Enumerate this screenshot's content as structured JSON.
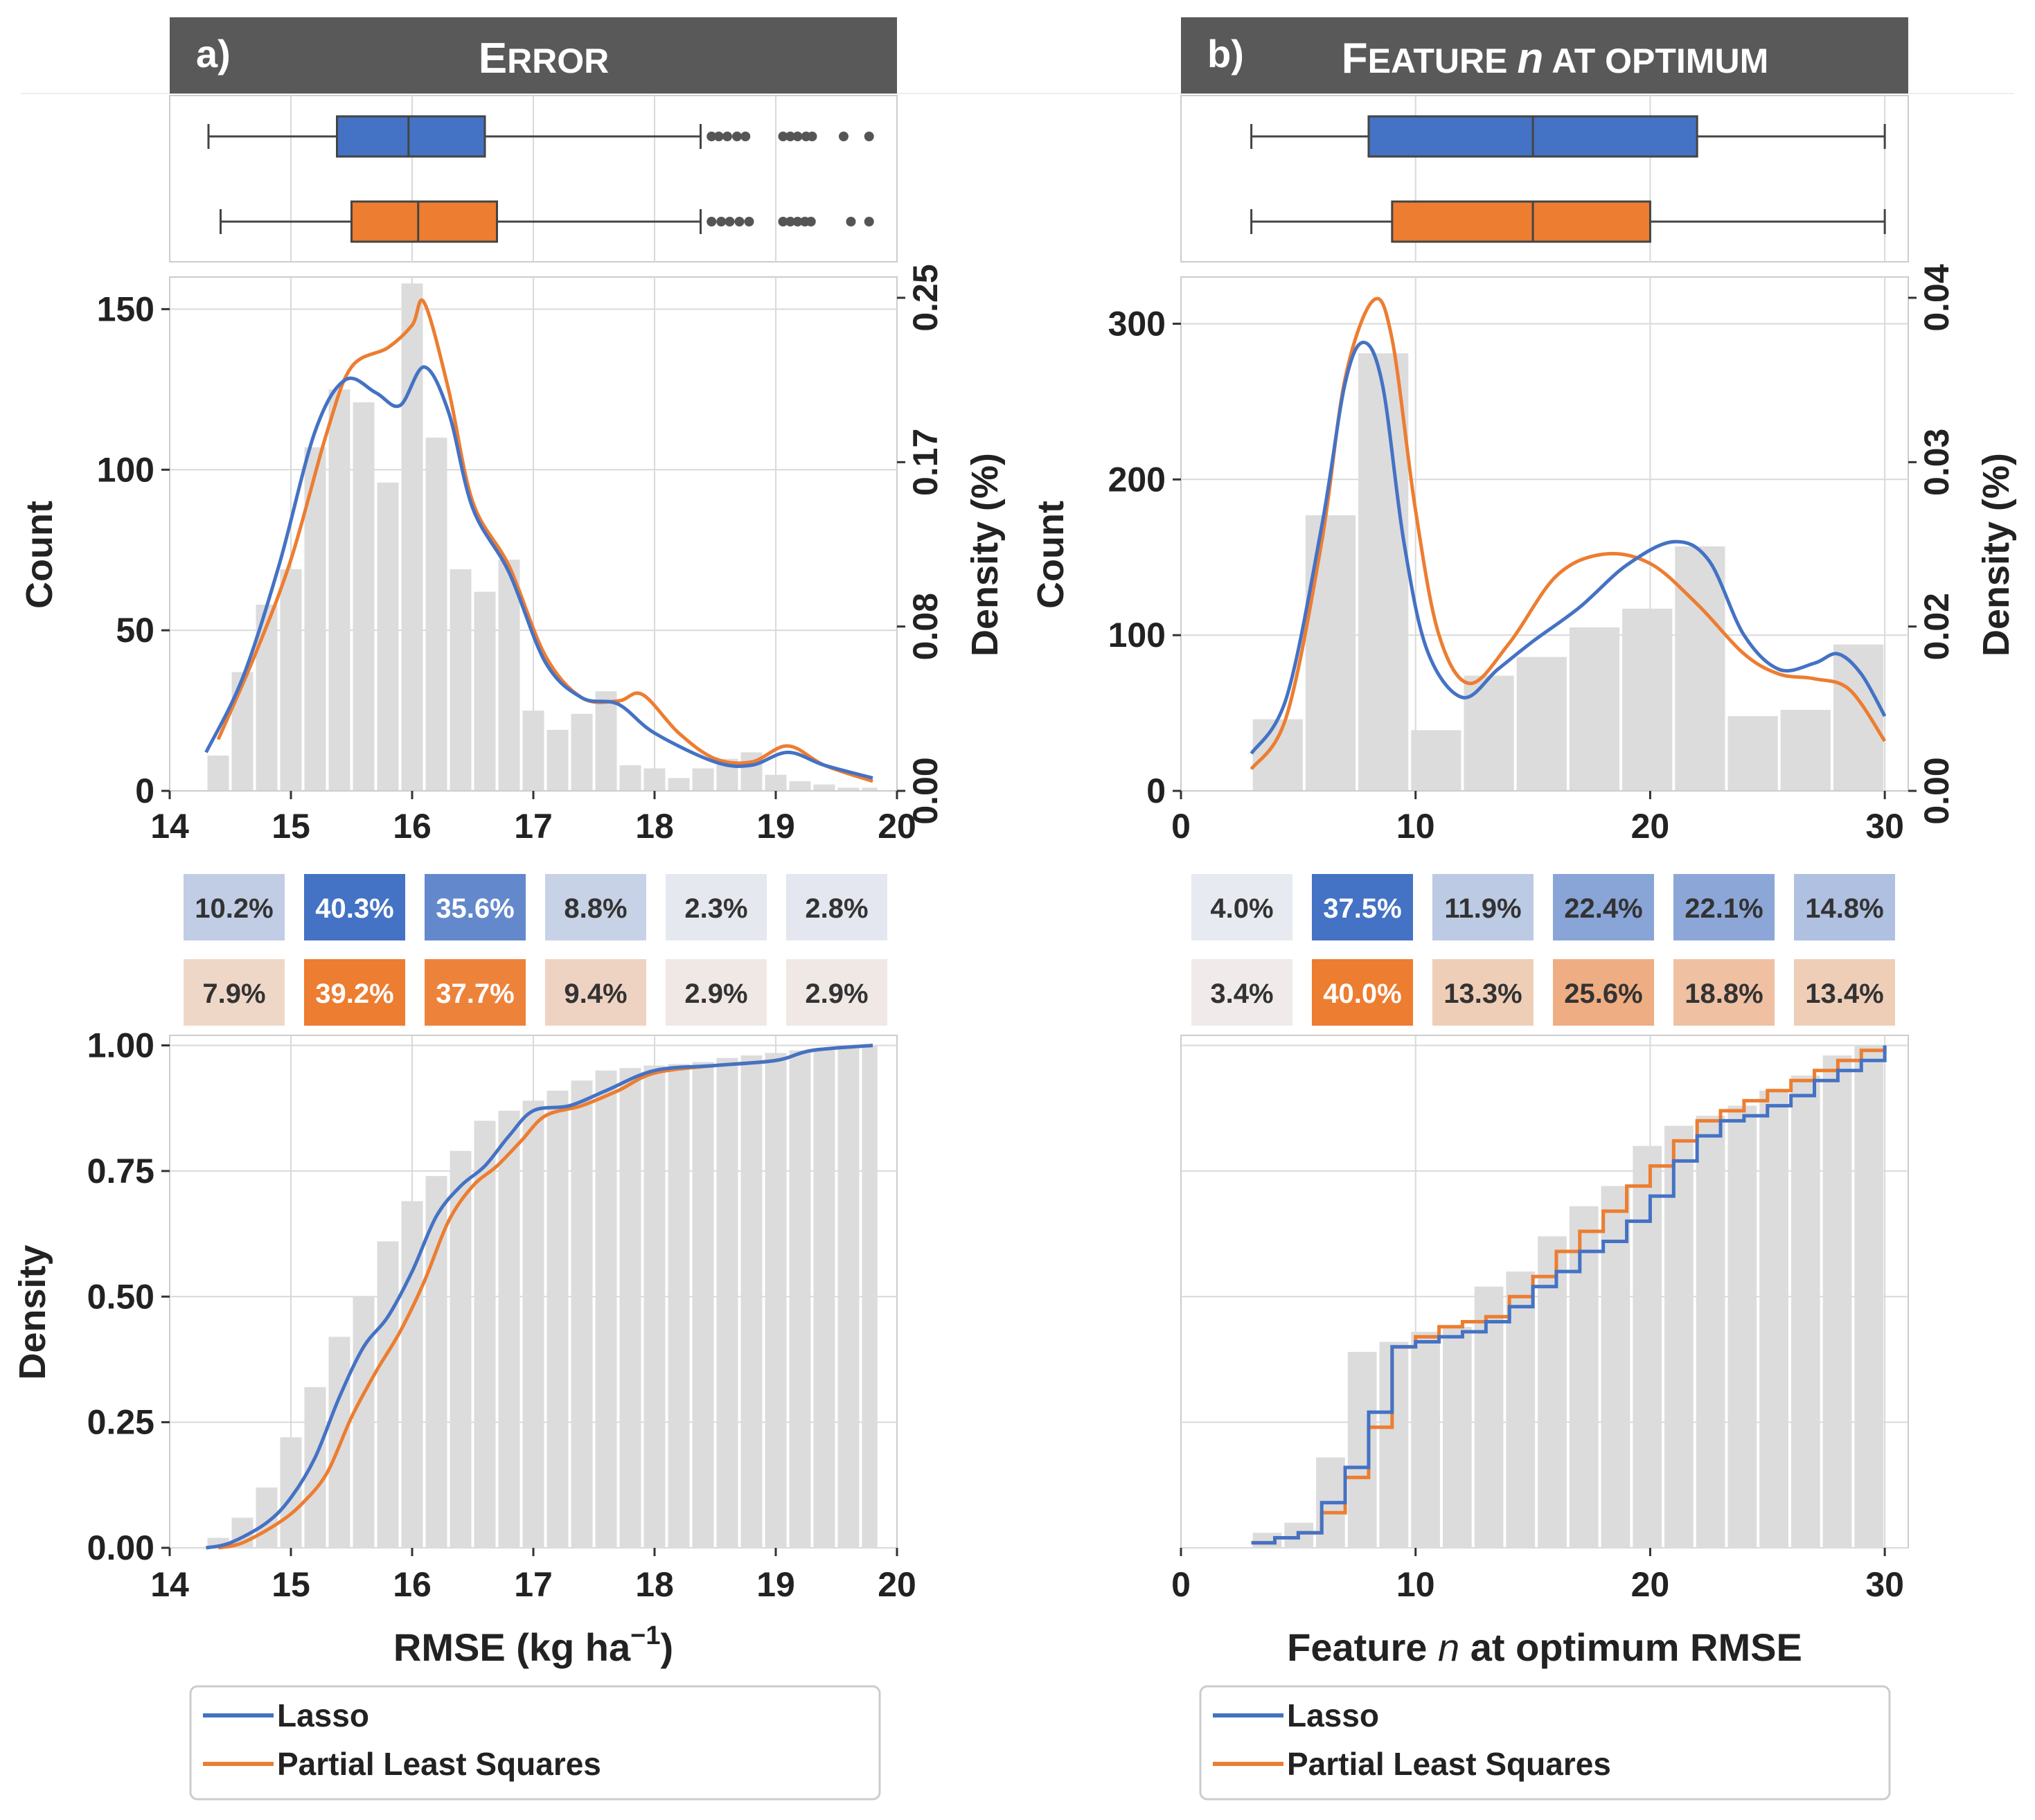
{
  "colors": {
    "lasso": "#4472c4",
    "pls": "#ed7d31",
    "hist": "#dcdcdc",
    "header": "#595959",
    "grid": "#d9d9d9",
    "axis": "#333333",
    "outlier": "#555555"
  },
  "panels": [
    {
      "letter": "a)",
      "title": "ERROR",
      "title_parts": [
        {
          "text": "E",
          "size": "big",
          "italic": false
        },
        {
          "text": "RROR",
          "size": "small",
          "italic": false
        }
      ],
      "xlabel": "RMSE (kg ha",
      "xlabel_sup": "−1",
      "xlabel_end": ")",
      "xlim": [
        14,
        20
      ],
      "xticks": [
        14,
        15,
        16,
        17,
        18,
        19,
        20
      ],
      "box": {
        "lasso": {
          "min": 14.32,
          "q1": 15.38,
          "median": 15.97,
          "q3": 16.6,
          "max": 18.38,
          "outliers": [
            18.47,
            18.53,
            18.6,
            18.68,
            18.75,
            19.06,
            19.12,
            19.18,
            19.25,
            19.3,
            19.56,
            19.77
          ]
        },
        "pls": {
          "min": 14.42,
          "q1": 15.5,
          "median": 16.05,
          "q3": 16.7,
          "max": 18.38,
          "outliers": [
            18.47,
            18.55,
            18.62,
            18.7,
            18.78,
            19.06,
            19.12,
            19.18,
            19.24,
            19.29,
            19.62,
            19.77
          ]
        }
      },
      "hist": {
        "ylim": [
          0,
          160
        ],
        "yticks": [
          0,
          50,
          100,
          150
        ],
        "ylabel": "Count",
        "y2label": "Density (%)",
        "y2ticks": [
          "0.00",
          "0.08",
          "0.17",
          "0.25"
        ],
        "bin_edges": [
          14.3,
          14.5,
          14.7,
          14.9,
          15.1,
          15.3,
          15.5,
          15.7,
          15.9,
          16.1,
          16.3,
          16.5,
          16.7,
          16.9,
          17.1,
          17.3,
          17.5,
          17.7,
          17.9,
          18.1,
          18.3,
          18.5,
          18.7,
          18.9,
          19.1,
          19.3,
          19.5,
          19.7,
          19.85
        ],
        "counts": [
          11,
          37,
          58,
          69,
          107,
          125,
          121,
          96,
          158,
          110,
          69,
          62,
          72,
          25,
          19,
          24,
          31,
          8,
          7,
          4,
          7,
          10,
          12,
          5,
          3,
          2,
          1,
          1
        ],
        "lasso_kde": [
          [
            14.3,
            12
          ],
          [
            14.6,
            35
          ],
          [
            14.9,
            70
          ],
          [
            15.2,
            112
          ],
          [
            15.45,
            128
          ],
          [
            15.7,
            124
          ],
          [
            15.9,
            120
          ],
          [
            16.1,
            132
          ],
          [
            16.3,
            118
          ],
          [
            16.5,
            88
          ],
          [
            16.8,
            68
          ],
          [
            17.1,
            40
          ],
          [
            17.4,
            29
          ],
          [
            17.7,
            27
          ],
          [
            18.0,
            18
          ],
          [
            18.5,
            9
          ],
          [
            18.8,
            8
          ],
          [
            19.1,
            12
          ],
          [
            19.4,
            8
          ],
          [
            19.8,
            4
          ]
        ],
        "pls_kde": [
          [
            14.4,
            16
          ],
          [
            14.7,
            42
          ],
          [
            15.0,
            72
          ],
          [
            15.3,
            112
          ],
          [
            15.5,
            132
          ],
          [
            15.8,
            138
          ],
          [
            16.0,
            145
          ],
          [
            16.1,
            152
          ],
          [
            16.3,
            125
          ],
          [
            16.5,
            90
          ],
          [
            16.8,
            70
          ],
          [
            17.1,
            42
          ],
          [
            17.4,
            29
          ],
          [
            17.7,
            28
          ],
          [
            17.9,
            30
          ],
          [
            18.2,
            18
          ],
          [
            18.5,
            10
          ],
          [
            18.8,
            9
          ],
          [
            19.1,
            14
          ],
          [
            19.4,
            8
          ],
          [
            19.8,
            3
          ]
        ]
      },
      "percent_rows": [
        {
          "series": "lasso",
          "cells": [
            "10.2%",
            "40.3%",
            "35.6%",
            "8.8%",
            "2.3%",
            "2.8%"
          ],
          "intensity": [
            0.28,
            1.0,
            0.82,
            0.24,
            0.06,
            0.07
          ]
        },
        {
          "series": "pls",
          "cells": [
            "7.9%",
            "39.2%",
            "37.7%",
            "9.4%",
            "2.9%",
            "2.9%"
          ],
          "intensity": [
            0.22,
            1.0,
            0.95,
            0.25,
            0.07,
            0.07
          ]
        }
      ],
      "cdf": {
        "ylim": [
          0,
          1.02
        ],
        "yticks": [
          "0.00",
          "0.25",
          "0.50",
          "0.75",
          "1.00"
        ],
        "ylabel": "Density",
        "bars": [
          0.02,
          0.06,
          0.12,
          0.22,
          0.32,
          0.42,
          0.5,
          0.61,
          0.69,
          0.74,
          0.79,
          0.85,
          0.87,
          0.89,
          0.91,
          0.93,
          0.95,
          0.955,
          0.96,
          0.963,
          0.967,
          0.975,
          0.98,
          0.985,
          0.99,
          0.995,
          0.998,
          1.0
        ],
        "lasso": [
          [
            14.3,
            0.0
          ],
          [
            14.5,
            0.01
          ],
          [
            14.8,
            0.05
          ],
          [
            15.0,
            0.1
          ],
          [
            15.2,
            0.18
          ],
          [
            15.4,
            0.3
          ],
          [
            15.6,
            0.4
          ],
          [
            15.8,
            0.46
          ],
          [
            16.0,
            0.55
          ],
          [
            16.2,
            0.66
          ],
          [
            16.4,
            0.72
          ],
          [
            16.6,
            0.76
          ],
          [
            16.8,
            0.82
          ],
          [
            17.0,
            0.87
          ],
          [
            17.3,
            0.88
          ],
          [
            17.6,
            0.91
          ],
          [
            18.0,
            0.95
          ],
          [
            18.5,
            0.96
          ],
          [
            19.0,
            0.97
          ],
          [
            19.3,
            0.99
          ],
          [
            19.8,
            1.0
          ]
        ],
        "pls": [
          [
            14.4,
            0.0
          ],
          [
            14.6,
            0.01
          ],
          [
            14.9,
            0.05
          ],
          [
            15.1,
            0.09
          ],
          [
            15.3,
            0.15
          ],
          [
            15.5,
            0.26
          ],
          [
            15.7,
            0.35
          ],
          [
            15.9,
            0.43
          ],
          [
            16.1,
            0.53
          ],
          [
            16.3,
            0.65
          ],
          [
            16.5,
            0.72
          ],
          [
            16.7,
            0.76
          ],
          [
            16.9,
            0.81
          ],
          [
            17.1,
            0.86
          ],
          [
            17.4,
            0.88
          ],
          [
            17.7,
            0.91
          ],
          [
            18.0,
            0.945
          ],
          [
            18.5,
            0.96
          ],
          [
            19.0,
            0.97
          ],
          [
            19.3,
            0.99
          ],
          [
            19.8,
            1.0
          ]
        ]
      },
      "legend": [
        "Lasso",
        "Partial Least Squares"
      ]
    },
    {
      "letter": "b)",
      "title": "FEATURE n AT OPTIMUM",
      "title_parts": [
        {
          "text": "F",
          "size": "big",
          "italic": false
        },
        {
          "text": "EATURE ",
          "size": "small",
          "italic": false
        },
        {
          "text": "n",
          "size": "big",
          "italic": true
        },
        {
          "text": " AT OPTIMUM",
          "size": "small",
          "italic": false
        }
      ],
      "xlabel": "Feature ",
      "xlabel_italic": "n",
      "xlabel_end": " at optimum RMSE",
      "xlim": [
        0,
        31
      ],
      "xticks": [
        0,
        10,
        20,
        30
      ],
      "box": {
        "lasso": {
          "min": 3,
          "q1": 8,
          "median": 15,
          "q3": 22,
          "max": 30,
          "outliers": []
        },
        "pls": {
          "min": 3,
          "q1": 9,
          "median": 15,
          "q3": 20,
          "max": 30,
          "outliers": []
        }
      },
      "hist": {
        "ylim": [
          0,
          330
        ],
        "yticks": [
          0,
          100,
          200,
          300
        ],
        "ylabel": "Count",
        "y2label": "Density (%)",
        "y2ticks": [
          "0.00",
          "0.02",
          "0.03",
          "0.04"
        ],
        "bin_edges": [
          3,
          5.25,
          7.5,
          9.75,
          12,
          14.25,
          16.5,
          18.75,
          21,
          23.25,
          25.5,
          27.75,
          30
        ],
        "counts": [
          46,
          177,
          281,
          39,
          74,
          86,
          105,
          117,
          157,
          48,
          52,
          94
        ],
        "lasso_kde": [
          [
            3,
            24
          ],
          [
            4.5,
            60
          ],
          [
            6,
            170
          ],
          [
            7,
            262
          ],
          [
            7.8,
            288
          ],
          [
            8.6,
            260
          ],
          [
            9.5,
            160
          ],
          [
            10.5,
            90
          ],
          [
            12,
            60
          ],
          [
            13.5,
            78
          ],
          [
            15,
            96
          ],
          [
            17,
            118
          ],
          [
            19,
            145
          ],
          [
            21,
            160
          ],
          [
            22.5,
            148
          ],
          [
            24,
            100
          ],
          [
            25.5,
            78
          ],
          [
            27,
            82
          ],
          [
            28,
            88
          ],
          [
            29,
            75
          ],
          [
            30,
            48
          ]
        ],
        "pls_kde": [
          [
            3,
            14
          ],
          [
            4.5,
            48
          ],
          [
            6,
            160
          ],
          [
            7,
            265
          ],
          [
            8.2,
            315
          ],
          [
            9,
            290
          ],
          [
            10,
            180
          ],
          [
            11,
            100
          ],
          [
            12.3,
            69
          ],
          [
            14,
            95
          ],
          [
            16,
            138
          ],
          [
            18,
            152
          ],
          [
            20,
            146
          ],
          [
            22,
            120
          ],
          [
            24,
            88
          ],
          [
            25.5,
            75
          ],
          [
            27,
            72
          ],
          [
            28.5,
            65
          ],
          [
            30,
            32
          ]
        ]
      },
      "percent_rows": [
        {
          "series": "lasso",
          "cells": [
            "4.0%",
            "37.5%",
            "11.9%",
            "22.4%",
            "22.1%",
            "14.8%"
          ],
          "intensity": [
            0.05,
            1.0,
            0.3,
            0.6,
            0.58,
            0.38
          ]
        },
        {
          "series": "pls",
          "cells": [
            "3.4%",
            "40.0%",
            "13.3%",
            "25.6%",
            "18.8%",
            "13.4%"
          ],
          "intensity": [
            0.04,
            1.0,
            0.3,
            0.58,
            0.42,
            0.3
          ]
        }
      ],
      "cdf": {
        "ylim": [
          0,
          1.02
        ],
        "yticks": [],
        "ylabel": "",
        "bars": [
          0.03,
          0.05,
          0.18,
          0.39,
          0.41,
          0.43,
          0.44,
          0.52,
          0.55,
          0.62,
          0.68,
          0.72,
          0.8,
          0.84,
          0.86,
          0.88,
          0.91,
          0.94,
          0.98,
          1.0
        ],
        "step_edges": [
          3,
          4,
          5,
          6,
          7,
          8,
          9,
          10,
          11,
          12,
          13,
          14,
          15,
          16,
          17,
          18,
          19,
          20,
          21,
          22,
          23,
          24,
          25,
          26,
          27,
          28,
          29,
          30
        ],
        "lasso_steps": [
          0.01,
          0.02,
          0.03,
          0.09,
          0.16,
          0.27,
          0.4,
          0.41,
          0.42,
          0.43,
          0.45,
          0.48,
          0.52,
          0.55,
          0.59,
          0.61,
          0.65,
          0.7,
          0.77,
          0.82,
          0.85,
          0.86,
          0.88,
          0.9,
          0.93,
          0.95,
          0.97,
          1.0
        ],
        "pls_steps": [
          0.01,
          0.02,
          0.03,
          0.07,
          0.14,
          0.24,
          0.4,
          0.42,
          0.44,
          0.45,
          0.46,
          0.5,
          0.54,
          0.59,
          0.63,
          0.67,
          0.72,
          0.76,
          0.81,
          0.85,
          0.87,
          0.89,
          0.91,
          0.93,
          0.95,
          0.97,
          0.99,
          1.0
        ]
      },
      "legend": [
        "Lasso",
        "Partial Least Squares"
      ]
    }
  ],
  "chart_data": [
    {
      "type": "bar",
      "title": "a) ERROR",
      "xlabel": "RMSE (kg ha−1)",
      "ylabel": "Count",
      "secondary_ylabel": "Density (%)",
      "xlim": [
        14,
        20
      ],
      "ylim": [
        0,
        160
      ],
      "series": [
        {
          "name": "Histogram",
          "values": [
            11,
            37,
            58,
            69,
            107,
            125,
            121,
            96,
            158,
            110,
            69,
            62,
            72,
            25,
            19,
            24,
            31,
            8,
            7,
            4,
            7,
            10,
            12,
            5,
            3,
            2,
            1,
            1
          ]
        }
      ],
      "legend": [
        "Lasso",
        "Partial Least Squares"
      ]
    },
    {
      "type": "bar",
      "title": "b) FEATURE n AT OPTIMUM",
      "xlabel": "Feature n at optimum RMSE",
      "ylabel": "Count",
      "secondary_ylabel": "Density (%)",
      "xlim": [
        0,
        31
      ],
      "ylim": [
        0,
        330
      ],
      "series": [
        {
          "name": "Histogram",
          "values": [
            46,
            177,
            281,
            39,
            74,
            86,
            105,
            117,
            157,
            48,
            52,
            94
          ]
        }
      ],
      "legend": [
        "Lasso",
        "Partial Least Squares"
      ]
    }
  ]
}
